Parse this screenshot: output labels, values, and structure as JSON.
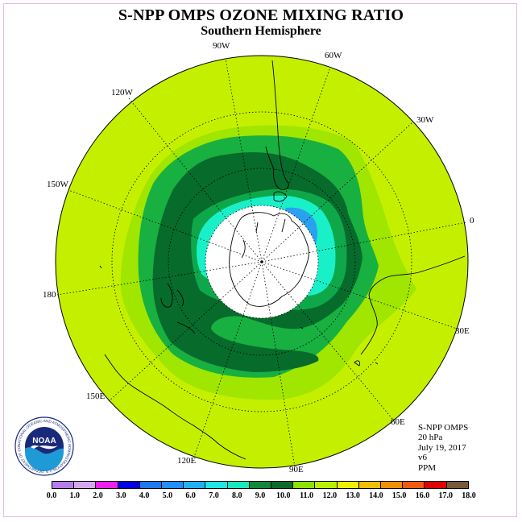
{
  "header": {
    "title": "S-NPP OMPS OZONE MIXING RATIO",
    "subtitle": "Southern Hemisphere"
  },
  "longitude_labels": [
    "90W",
    "60W",
    "30W",
    "0",
    "30E",
    "60E",
    "90E",
    "120E",
    "150E",
    "180",
    "150W",
    "120W"
  ],
  "info": {
    "instrument": "S-NPP OMPS",
    "level": "20 hPa",
    "date": "July 19, 2017",
    "version": "v6",
    "units": "PPM"
  },
  "logo": {
    "text": "NOAA",
    "ring_text": "NATIONAL OCEANIC AND ATMOSPHERIC ADMINISTRATION U.S. DEPARTMENT OF COMMERCE",
    "colors": {
      "navy": "#1a2a7a",
      "sky": "#1e9ad6",
      "white": "#ffffff"
    }
  },
  "colorbar": {
    "ticks": [
      "0.0",
      "1.0",
      "2.0",
      "3.0",
      "4.0",
      "5.0",
      "6.0",
      "7.0",
      "8.0",
      "9.0",
      "10.0",
      "11.0",
      "12.0",
      "13.0",
      "14.0",
      "15.0",
      "16.0",
      "17.0",
      "18.0"
    ],
    "colors": [
      "#b57ee8",
      "#d8a6f0",
      "#ee20ee",
      "#0000e6",
      "#1e78f0",
      "#1e90ff",
      "#22b0f5",
      "#1ee6e6",
      "#18e8c0",
      "#0e8a38",
      "#0a6a2a",
      "#8ee000",
      "#b8f000",
      "#f0f000",
      "#f0c000",
      "#f09000",
      "#f05a10",
      "#e00000",
      "#7a5a3a"
    ]
  },
  "map_colors": {
    "outer": "#c4f000",
    "band_11": "#a0e600",
    "band_10": "#18b040",
    "band_9": "#076b2c",
    "band_8": "#1af0c8",
    "band_7": "#1ec8f0",
    "band_6": "#2aa0f0",
    "pole_mask": "#ffffff"
  }
}
